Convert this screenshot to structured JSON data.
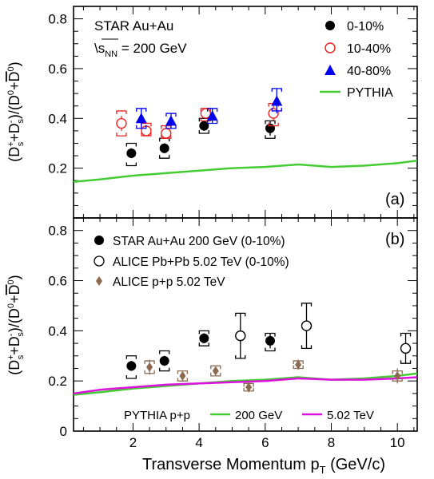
{
  "chart_data": [
    {
      "panel_label": "(a)",
      "type": "scatter",
      "ylabel": "(D_s^+ + D_s^-)/(D^0 + D̄^0)",
      "ylim": [
        0,
        0.85
      ],
      "yticks": [
        "0",
        "0.2",
        "0.4",
        "0.6",
        "0.8"
      ],
      "xlim": [
        0.2,
        10.6
      ],
      "texts": {
        "line1": "STAR Au+Au",
        "energy_prefix": "\\s",
        "energy_sub": "NN",
        "energy_suffix": " = 200 GeV"
      },
      "legend": [
        "0-10%",
        "10-40%",
        "40-80%",
        "PYTHIA"
      ],
      "series": [
        {
          "name": "0-10%",
          "marker": "filled-circle",
          "color": "#000000",
          "bracket_color": "#000000",
          "points": [
            {
              "x": 1.95,
              "y": 0.26,
              "err": 0.02,
              "sys": [
                0.21,
                0.3
              ]
            },
            {
              "x": 2.95,
              "y": 0.28,
              "err": 0.02,
              "sys": [
                0.24,
                0.32
              ]
            },
            {
              "x": 4.15,
              "y": 0.37,
              "err": 0.02,
              "sys": [
                0.34,
                0.4
              ]
            },
            {
              "x": 6.15,
              "y": 0.36,
              "err": 0.03,
              "sys": [
                0.32,
                0.39
              ]
            }
          ]
        },
        {
          "name": "10-40%",
          "marker": "open-circle",
          "color": "#ee2222",
          "bracket_color": "#ee2222",
          "points": [
            {
              "x": 1.65,
              "y": 0.38,
              "err": 0.03,
              "sys": [
                0.33,
                0.43
              ]
            },
            {
              "x": 2.4,
              "y": 0.35,
              "err": 0.02,
              "sys": [
                0.33,
                0.38
              ]
            },
            {
              "x": 3.0,
              "y": 0.34,
              "err": 0.02,
              "sys": [
                0.32,
                0.37
              ]
            },
            {
              "x": 4.2,
              "y": 0.42,
              "err": 0.02,
              "sys": [
                0.39,
                0.44
              ]
            },
            {
              "x": 6.25,
              "y": 0.42,
              "err": 0.03,
              "sys": [
                0.37,
                0.46
              ]
            }
          ]
        },
        {
          "name": "40-80%",
          "marker": "filled-triangle",
          "color": "#0000ee",
          "bracket_color": "#0000ee",
          "points": [
            {
              "x": 2.25,
              "y": 0.4,
              "err": 0.04,
              "sys": [
                0.36,
                0.44
              ]
            },
            {
              "x": 3.15,
              "y": 0.39,
              "err": 0.03,
              "sys": [
                0.36,
                0.42
              ]
            },
            {
              "x": 4.4,
              "y": 0.41,
              "err": 0.03,
              "sys": [
                0.38,
                0.44
              ]
            },
            {
              "x": 6.35,
              "y": 0.47,
              "err": 0.05,
              "sys": [
                0.43,
                0.52
              ]
            }
          ]
        }
      ],
      "curves": [
        {
          "name": "PYTHIA",
          "color": "#44cc33",
          "x": [
            0.2,
            1.0,
            2.0,
            3.0,
            4.0,
            5.0,
            6.0,
            7.0,
            8.0,
            9.0,
            10.0,
            10.6
          ],
          "y": [
            0.145,
            0.155,
            0.17,
            0.18,
            0.19,
            0.2,
            0.205,
            0.215,
            0.205,
            0.21,
            0.22,
            0.23
          ]
        }
      ]
    },
    {
      "panel_label": "(b)",
      "type": "scatter",
      "xlabel_main": "Transverse Momentum p",
      "xlabel_sub": "T",
      "xlabel_unit": " (GeV/c)",
      "ylabel": "(D_s^+ + D_s^-)/(D^0 + D̄^0)",
      "ylim": [
        0,
        0.85
      ],
      "yticks": [
        "0",
        "0.2",
        "0.4",
        "0.6",
        "0.8"
      ],
      "xlim": [
        0.2,
        10.6
      ],
      "xticks": [
        "2",
        "4",
        "6",
        "8",
        "10"
      ],
      "legend": [
        "STAR Au+Au 200 GeV (0-10%)",
        "ALICE Pb+Pb 5.02 TeV (0-10%)",
        "ALICE p+p 5.02 TeV"
      ],
      "pythia_legend": {
        "label": "PYTHIA p+p",
        "entries": [
          "200 GeV",
          "5.02 TeV"
        ]
      },
      "series": [
        {
          "name": "STAR Au+Au 200 GeV (0-10%)",
          "marker": "filled-circle",
          "color": "#000000",
          "bracket_color": "#000000",
          "points": [
            {
              "x": 1.95,
              "y": 0.26,
              "err": 0.02,
              "sys": [
                0.21,
                0.3
              ]
            },
            {
              "x": 2.95,
              "y": 0.28,
              "err": 0.02,
              "sys": [
                0.24,
                0.32
              ]
            },
            {
              "x": 4.15,
              "y": 0.37,
              "err": 0.02,
              "sys": [
                0.34,
                0.4
              ]
            },
            {
              "x": 6.15,
              "y": 0.36,
              "err": 0.03,
              "sys": [
                0.32,
                0.39
              ]
            }
          ]
        },
        {
          "name": "ALICE Pb+Pb 5.02 TeV (0-10%)",
          "marker": "open-circle",
          "color": "#000000",
          "bracket_color": "#000000",
          "points": [
            {
              "x": 5.25,
              "y": 0.38,
              "err": 0.09,
              "sys": [
                0.29,
                0.47
              ]
            },
            {
              "x": 7.25,
              "y": 0.42,
              "err": 0.09,
              "sys": [
                0.33,
                0.51
              ]
            },
            {
              "x": 10.25,
              "y": 0.33,
              "err": 0.06,
              "sys": [
                0.27,
                0.39
              ]
            }
          ]
        },
        {
          "name": "ALICE p+p 5.02 TeV",
          "marker": "diamond",
          "color": "#8b6a50",
          "bracket_color": "#8b6a50",
          "points": [
            {
              "x": 2.5,
              "y": 0.255,
              "err": 0.03,
              "sys": [
                0.23,
                0.28
              ]
            },
            {
              "x": 3.5,
              "y": 0.22,
              "err": 0.02,
              "sys": [
                0.2,
                0.24
              ]
            },
            {
              "x": 4.5,
              "y": 0.24,
              "err": 0.015,
              "sys": [
                0.22,
                0.26
              ]
            },
            {
              "x": 5.5,
              "y": 0.175,
              "err": 0.02,
              "sys": [
                0.16,
                0.19
              ]
            },
            {
              "x": 7.0,
              "y": 0.265,
              "err": 0.02,
              "sys": [
                0.25,
                0.28
              ]
            },
            {
              "x": 10.0,
              "y": 0.22,
              "err": 0.03,
              "sys": [
                0.2,
                0.24
              ]
            }
          ]
        }
      ],
      "curves": [
        {
          "name": "200 GeV",
          "color": "#44cc33",
          "x": [
            0.2,
            1.0,
            2.0,
            3.0,
            4.0,
            5.0,
            6.0,
            7.0,
            8.0,
            9.0,
            10.0,
            10.6
          ],
          "y": [
            0.145,
            0.155,
            0.17,
            0.18,
            0.19,
            0.2,
            0.205,
            0.215,
            0.205,
            0.21,
            0.22,
            0.23
          ]
        },
        {
          "name": "5.02 TeV",
          "color": "#dd11dd",
          "x": [
            0.2,
            1.0,
            2.0,
            3.0,
            4.0,
            5.0,
            6.0,
            7.0,
            8.0,
            9.0,
            10.0,
            10.6
          ],
          "y": [
            0.15,
            0.165,
            0.175,
            0.185,
            0.19,
            0.195,
            0.2,
            0.21,
            0.205,
            0.205,
            0.21,
            0.215
          ]
        }
      ]
    }
  ]
}
